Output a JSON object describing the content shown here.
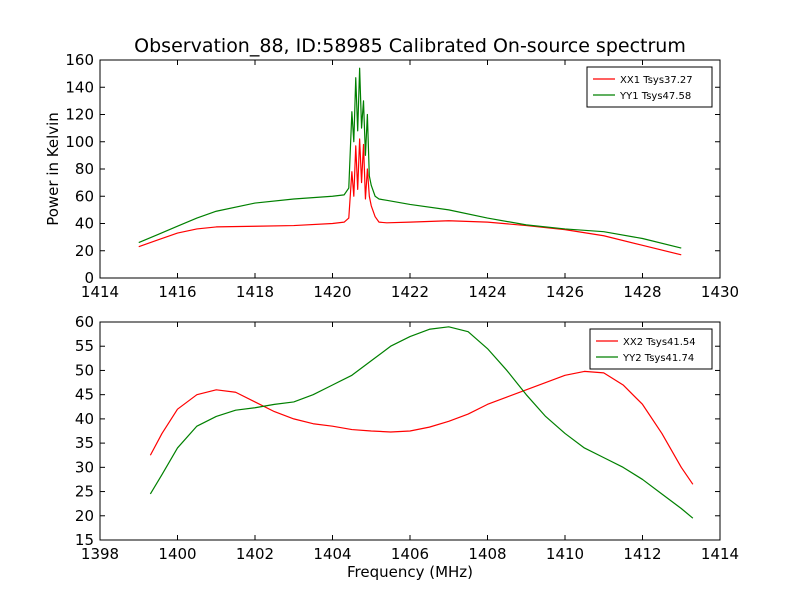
{
  "figure": {
    "title": "Observation_88, ID:58985 Calibrated On-source spectrum"
  },
  "chart_data": [
    {
      "type": "line",
      "title": "Observation_88, ID:58985 Calibrated On-source spectrum",
      "xlabel": "",
      "ylabel": "Power in Kelvin",
      "xlim": [
        1414,
        1430
      ],
      "ylim": [
        0,
        160
      ],
      "xticks": [
        "1414",
        "1416",
        "1418",
        "1420",
        "1422",
        "1424",
        "1426",
        "1428",
        "1430"
      ],
      "yticks": [
        "0",
        "20",
        "40",
        "60",
        "80",
        "100",
        "120",
        "140",
        "160"
      ],
      "grid": false,
      "legend_position": "top-right",
      "series": [
        {
          "name": "XX1 Tsys37.27",
          "color": "#ff0000",
          "x": [
            1415.0,
            1415.5,
            1416.0,
            1416.5,
            1417.0,
            1418.0,
            1419.0,
            1420.0,
            1420.3,
            1420.42,
            1420.5,
            1420.55,
            1420.6,
            1420.65,
            1420.7,
            1420.75,
            1420.8,
            1420.85,
            1420.9,
            1420.95,
            1421.0,
            1421.1,
            1421.2,
            1421.4,
            1422.0,
            1423.0,
            1424.0,
            1425.0,
            1426.0,
            1427.0,
            1428.0,
            1429.0
          ],
          "y": [
            23,
            28,
            33,
            36,
            37.5,
            38,
            38.5,
            40,
            41,
            44,
            78,
            60,
            97,
            65,
            102,
            70,
            98,
            58,
            80,
            60,
            53,
            45,
            41,
            40.5,
            41,
            42,
            41,
            38.5,
            35.5,
            31,
            24,
            17
          ]
        },
        {
          "name": "YY1 Tsys47.58",
          "color": "#008000",
          "x": [
            1415.0,
            1415.5,
            1416.0,
            1416.5,
            1417.0,
            1418.0,
            1419.0,
            1420.0,
            1420.3,
            1420.42,
            1420.5,
            1420.55,
            1420.6,
            1420.65,
            1420.7,
            1420.75,
            1420.8,
            1420.85,
            1420.9,
            1420.95,
            1421.0,
            1421.1,
            1421.2,
            1421.4,
            1422.0,
            1423.0,
            1424.0,
            1425.0,
            1426.0,
            1427.0,
            1428.0,
            1429.0
          ],
          "y": [
            26,
            32,
            38,
            44,
            49,
            55,
            58,
            60,
            61,
            66,
            122,
            100,
            147,
            108,
            154,
            110,
            130,
            90,
            120,
            75,
            68,
            60,
            58,
            57,
            54,
            50,
            44,
            39,
            36,
            34,
            29,
            22
          ]
        }
      ]
    },
    {
      "type": "line",
      "title": "",
      "xlabel": "Frequency (MHz)",
      "ylabel": "",
      "xlim": [
        1398,
        1414
      ],
      "ylim": [
        15,
        60
      ],
      "xticks": [
        "1398",
        "1400",
        "1402",
        "1404",
        "1406",
        "1408",
        "1410",
        "1412",
        "1414"
      ],
      "yticks": [
        "15",
        "20",
        "25",
        "30",
        "35",
        "40",
        "45",
        "50",
        "55",
        "60"
      ],
      "grid": false,
      "legend_position": "top-right",
      "series": [
        {
          "name": "XX2 Tsys41.54",
          "color": "#ff0000",
          "x": [
            1399.3,
            1399.6,
            1400.0,
            1400.5,
            1401.0,
            1401.5,
            1402.0,
            1402.5,
            1403.0,
            1403.5,
            1404.0,
            1404.5,
            1405.0,
            1405.5,
            1406.0,
            1406.5,
            1407.0,
            1407.5,
            1408.0,
            1408.5,
            1409.0,
            1409.5,
            1410.0,
            1410.5,
            1411.0,
            1411.5,
            1412.0,
            1412.5,
            1413.0,
            1413.3
          ],
          "y": [
            32.5,
            37,
            42,
            45,
            46,
            45.5,
            43.5,
            41.5,
            40,
            39,
            38.5,
            37.8,
            37.5,
            37.3,
            37.5,
            38.3,
            39.5,
            41,
            43,
            44.5,
            46,
            47.5,
            49,
            49.8,
            49.5,
            47,
            43,
            37,
            30,
            26.5
          ]
        },
        {
          "name": "YY2 Tsys41.74",
          "color": "#008000",
          "x": [
            1399.3,
            1399.6,
            1400.0,
            1400.5,
            1401.0,
            1401.5,
            1402.0,
            1402.5,
            1403.0,
            1403.5,
            1404.0,
            1404.5,
            1405.0,
            1405.5,
            1406.0,
            1406.5,
            1407.0,
            1407.5,
            1408.0,
            1408.5,
            1409.0,
            1409.5,
            1410.0,
            1410.5,
            1411.0,
            1411.5,
            1412.0,
            1412.5,
            1413.0,
            1413.3
          ],
          "y": [
            24.5,
            28.5,
            34,
            38.5,
            40.5,
            41.8,
            42.3,
            43,
            43.5,
            45,
            47,
            49,
            52,
            55,
            57,
            58.5,
            59,
            58,
            54.5,
            50,
            45,
            40.5,
            37,
            34,
            32,
            30,
            27.5,
            24.5,
            21.5,
            19.5
          ]
        }
      ]
    }
  ]
}
